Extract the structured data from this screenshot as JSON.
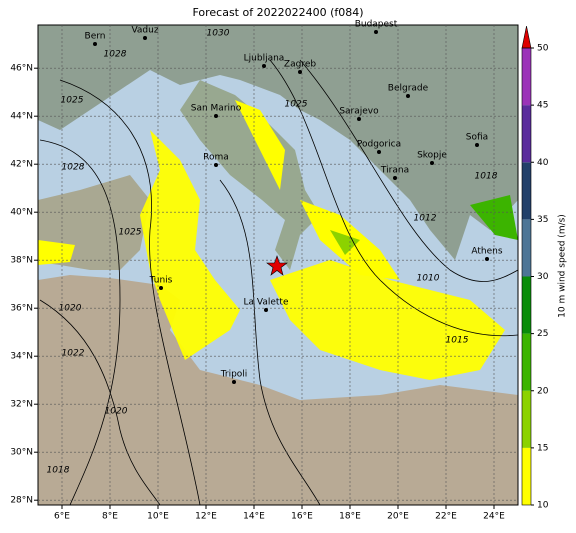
{
  "title": "Forecast of 2022022400 (f084)",
  "map": {
    "xlim": [
      5,
      25
    ],
    "ylim": [
      27.8,
      47.8
    ],
    "xticks": [
      {
        "value": 6,
        "label": "6°E"
      },
      {
        "value": 8,
        "label": "8°E"
      },
      {
        "value": 10,
        "label": "10°E"
      },
      {
        "value": 12,
        "label": "12°E"
      },
      {
        "value": 14,
        "label": "14°E"
      },
      {
        "value": 16,
        "label": "16°E"
      },
      {
        "value": 18,
        "label": "18°E"
      },
      {
        "value": 20,
        "label": "20°E"
      },
      {
        "value": 22,
        "label": "22°E"
      },
      {
        "value": 24,
        "label": "24°E"
      }
    ],
    "yticks": [
      {
        "value": 28,
        "label": "28°N"
      },
      {
        "value": 30,
        "label": "30°N"
      },
      {
        "value": 32,
        "label": "32°N"
      },
      {
        "value": 34,
        "label": "34°N"
      },
      {
        "value": 36,
        "label": "36°N"
      },
      {
        "value": 38,
        "label": "38°N"
      },
      {
        "value": 40,
        "label": "40°N"
      },
      {
        "value": 42,
        "label": "42°N"
      },
      {
        "value": 44,
        "label": "44°N"
      },
      {
        "value": 46,
        "label": "46°N"
      }
    ],
    "grid": true,
    "cities": [
      "Bern",
      "Vaduz",
      "Budapest",
      "Ljubljana",
      "Zagreb",
      "San Marino",
      "Sarajevo",
      "Belgrade",
      "Podgorica",
      "Skopje",
      "Sofia",
      "Tirana",
      "Roma",
      "Athens",
      "Tunis",
      "La Valette",
      "Tripoli"
    ],
    "isobar_labels": [
      "1030",
      "1028",
      "1025",
      "1028",
      "1025",
      "1020",
      "1022",
      "1020",
      "1018",
      "1025",
      "1015",
      "1010",
      "1018",
      "1012"
    ]
  },
  "colorbar": {
    "label": "10 m wind speed (m/s)",
    "lim": [
      10,
      50
    ],
    "ticks": [
      10,
      15,
      20,
      25,
      30,
      35,
      40,
      45,
      50
    ],
    "colors": [
      "#ffff00",
      "#8cd200",
      "#3cb400",
      "#0a8c0a",
      "#4d7596",
      "#22406a",
      "#5a2c9c",
      "#9b33b8"
    ],
    "extend_color": "#dd0000"
  }
}
